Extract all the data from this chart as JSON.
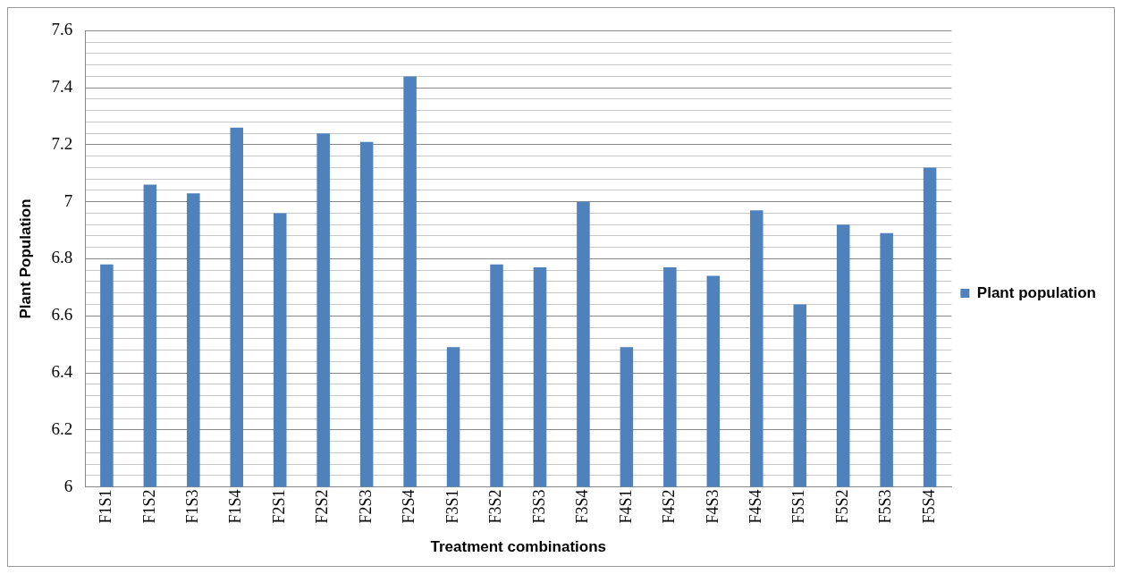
{
  "chart_data": {
    "type": "bar",
    "xlabel": "Treatment combinations",
    "ylabel": "Plant Population",
    "categories": [
      "F1S1",
      "F1S2",
      "F1S3",
      "F1S4",
      "F2S1",
      "F2S2",
      "F2S3",
      "F2S4",
      "F3S1",
      "F3S2",
      "F3S3",
      "F3S4",
      "F4S1",
      "F4S2",
      "F4S3",
      "F4S4",
      "F5S1",
      "F5S2",
      "F5S3",
      "F5S4"
    ],
    "series": [
      {
        "name": "Plant population",
        "color": "#4f81bd",
        "values": [
          6.78,
          7.06,
          7.03,
          7.26,
          6.96,
          7.24,
          7.21,
          7.44,
          6.49,
          6.78,
          6.77,
          7.0,
          6.49,
          6.77,
          6.74,
          6.97,
          6.64,
          6.92,
          6.89,
          7.12
        ]
      }
    ],
    "ylim": [
      6,
      7.6
    ],
    "yticks": [
      6,
      {
        "value": 6.04,
        "label": null
      },
      {
        "value": 6.08,
        "label": null
      },
      {
        "value": 6.12,
        "label": null
      },
      {
        "value": 6.16,
        "label": null
      },
      6.2,
      {
        "value": 6.24,
        "label": null
      },
      {
        "value": 6.28,
        "label": null
      },
      {
        "value": 6.32,
        "label": null
      },
      {
        "value": 6.36,
        "label": null
      },
      6.4,
      {
        "value": 6.44,
        "label": null
      },
      {
        "value": 6.48,
        "label": null
      },
      {
        "value": 6.52,
        "label": null
      },
      {
        "value": 6.56,
        "label": null
      },
      6.6,
      {
        "value": 6.64,
        "label": null
      },
      {
        "value": 6.68,
        "label": null
      },
      {
        "value": 6.72,
        "label": null
      },
      {
        "value": 6.76,
        "label": null
      },
      6.8,
      {
        "value": 6.84,
        "label": null
      },
      {
        "value": 6.88,
        "label": null
      },
      {
        "value": 6.92,
        "label": null
      },
      {
        "value": 6.96,
        "label": null
      },
      7,
      {
        "value": 7.04,
        "label": null
      },
      {
        "value": 7.08,
        "label": null
      },
      {
        "value": 7.12,
        "label": null
      },
      {
        "value": 7.16,
        "label": null
      },
      7.2,
      {
        "value": 7.24,
        "label": null
      },
      {
        "value": 7.28,
        "label": null
      },
      {
        "value": 7.32,
        "label": null
      },
      {
        "value": 7.36,
        "label": null
      },
      7.4,
      {
        "value": 7.44,
        "label": null
      },
      {
        "value": 7.48,
        "label": null
      },
      {
        "value": 7.52,
        "label": null
      },
      {
        "value": 7.56,
        "label": null
      },
      7.6
    ],
    "grid": "y",
    "legend": "right"
  }
}
